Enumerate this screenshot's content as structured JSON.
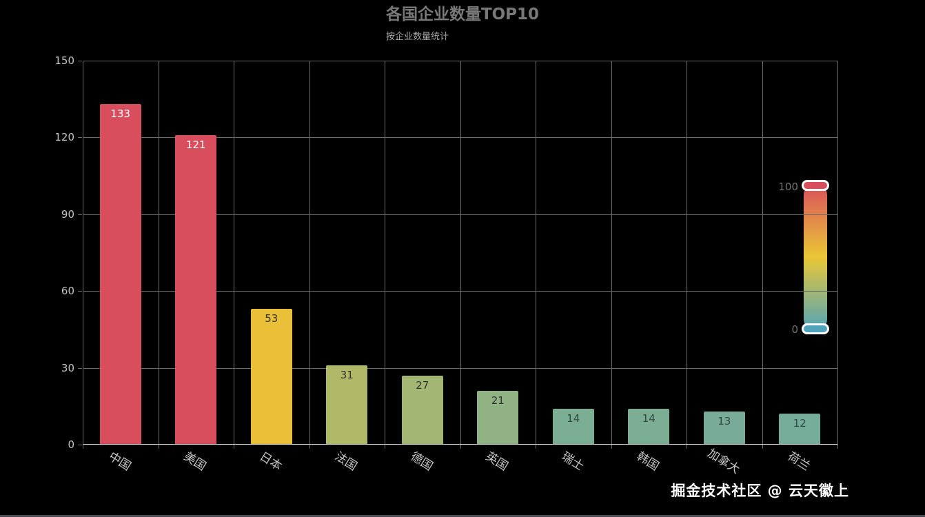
{
  "title": "各国企业数量TOP10",
  "subtitle": "按企业数量统计",
  "watermark": "掘金技术社区 @ 云天徽上",
  "colors": {
    "background": "#000000",
    "title": "#787878",
    "subtitle": "#a9a9a9",
    "axis_label": "#c4c4c4",
    "grid_line": "#6b6b6b",
    "axis_line": "#e8e8e8",
    "visualmap_label": "#757575",
    "watermark": "#ffffff"
  },
  "chart_data": {
    "type": "bar",
    "title": "各国企业数量TOP10",
    "subtitle": "按企业数量统计",
    "categories": [
      "中国",
      "美国",
      "日本",
      "法国",
      "德国",
      "英国",
      "瑞士",
      "韩国",
      "加拿大",
      "荷兰"
    ],
    "values": [
      133,
      121,
      53,
      31,
      27,
      21,
      14,
      14,
      13,
      12
    ],
    "bar_colors": [
      "#d94e5d",
      "#d94e5d",
      "#e9c038",
      "#b0b968",
      "#a3b673",
      "#91b283",
      "#7bad95",
      "#7bad95",
      "#78ac98",
      "#75ac9a"
    ],
    "value_label_colors": [
      "#ffffff",
      "#ffffff",
      "#333333",
      "#333333",
      "#333333",
      "#333333",
      "#2f4a45",
      "#2f4a45",
      "#2f4a45",
      "#2f4a45"
    ],
    "xlabel": "",
    "ylabel": "",
    "ylim": [
      0,
      150
    ],
    "yticks": [
      0,
      30,
      60,
      90,
      120,
      150
    ],
    "grid": true,
    "legend": false,
    "x_label_rotation_deg": 32,
    "visual_map": {
      "min": 0,
      "max": 100,
      "min_label": "0",
      "max_label": "100",
      "orientation": "vertical",
      "position": "right",
      "gradient_low_to_high": [
        "#50a3ba",
        "#eac736",
        "#d94e5d"
      ]
    }
  }
}
